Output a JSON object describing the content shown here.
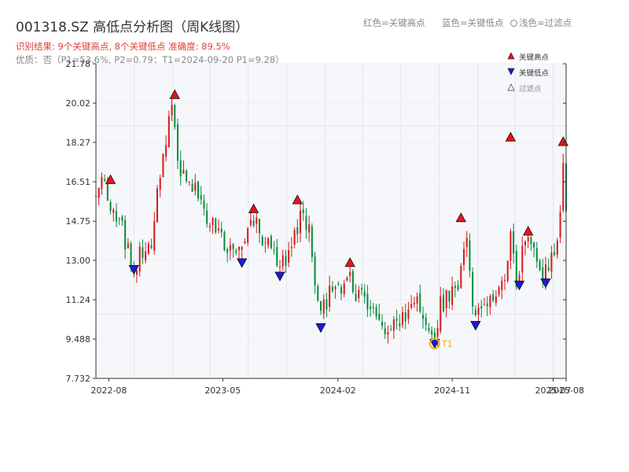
{
  "header": {
    "title": "001318.SZ 高低点分析图（周K线图）",
    "legend_text": {
      "red": "红色=关键高点",
      "blue": "蓝色=关键低点",
      "filtered": "浅色=过滤点"
    },
    "result": "识别结果: 9个关键高点, 8个关键低点  准确度: 89.5%",
    "quality": "优质：否（P1=53.6%, P2=0.79；T1=2024-09-20 P1=9.28）"
  },
  "colors": {
    "up": "#d7191c",
    "down": "#0a8a3a",
    "high_marker": "#e8141c",
    "low_marker": "#1a1ad8",
    "t1": "#f5a623",
    "plot_bg": "#f5f7fa",
    "grid": "#e2e6ea"
  },
  "chart_data": {
    "type": "candlestick",
    "title": "001318.SZ 高低点分析图（周K线图）",
    "x_range": [
      "2022-07-01",
      "2025-08-01"
    ],
    "y_range": [
      7.732,
      21.78
    ],
    "y_ticks": [
      {
        "value": 7.732,
        "label": "7.732"
      },
      {
        "value": 9.488,
        "label": "9.488"
      },
      {
        "value": 11.244,
        "label": "11.24"
      },
      {
        "value": 13.0,
        "label": "13.00"
      },
      {
        "value": 14.75,
        "label": "14.75"
      },
      {
        "value": 16.51,
        "label": "16.51"
      },
      {
        "value": 18.27,
        "label": "18.27"
      },
      {
        "value": 20.02,
        "label": "20.02"
      },
      {
        "value": 21.78,
        "label": "21.78"
      }
    ],
    "x_ticks": [
      {
        "date": "2022-08-01",
        "label": "2022-08"
      },
      {
        "date": "2023-05-01",
        "label": "2023-05"
      },
      {
        "date": "2024-02-01",
        "label": "2024-02"
      },
      {
        "date": "2024-11-01",
        "label": "2024-11"
      },
      {
        "date": "2025-07-01",
        "label": "2025-07"
      },
      {
        "date": "2025-08-01",
        "label": "2025-08"
      }
    ],
    "price_path": [
      [
        "2022-07-01",
        16.0
      ],
      [
        "2022-07-22",
        16.5
      ],
      [
        "2022-08-05",
        15.5
      ],
      [
        "2022-08-26",
        14.8
      ],
      [
        "2022-09-16",
        13.5
      ],
      [
        "2022-09-30",
        12.6
      ],
      [
        "2022-10-21",
        13.5
      ],
      [
        "2022-11-11",
        14.0
      ],
      [
        "2022-12-02",
        17.0
      ],
      [
        "2022-12-16",
        18.5
      ],
      [
        "2022-12-30",
        20.0
      ],
      [
        "2023-01-13",
        17.0
      ],
      [
        "2023-02-03",
        16.5
      ],
      [
        "2023-02-24",
        16.5
      ],
      [
        "2023-03-17",
        15.0
      ],
      [
        "2023-04-07",
        14.5
      ],
      [
        "2023-04-28",
        14.0
      ],
      [
        "2023-05-19",
        13.5
      ],
      [
        "2023-06-09",
        13.2
      ],
      [
        "2023-06-23",
        14.0
      ],
      [
        "2023-07-14",
        14.8
      ],
      [
        "2023-08-04",
        14.0
      ],
      [
        "2023-08-25",
        13.5
      ],
      [
        "2023-09-15",
        12.6
      ],
      [
        "2023-10-06",
        13.2
      ],
      [
        "2023-10-27",
        14.5
      ],
      [
        "2023-11-10",
        15.2
      ],
      [
        "2023-11-24",
        14.2
      ],
      [
        "2023-12-08",
        12.0
      ],
      [
        "2023-12-22",
        10.5
      ],
      [
        "2024-01-12",
        11.5
      ],
      [
        "2024-02-02",
        11.5
      ],
      [
        "2024-02-23",
        12.5
      ],
      [
        "2024-03-15",
        11.5
      ],
      [
        "2024-04-05",
        11.5
      ],
      [
        "2024-04-26",
        10.5
      ],
      [
        "2024-05-17",
        10.2
      ],
      [
        "2024-06-07",
        10.0
      ],
      [
        "2024-06-28",
        10.3
      ],
      [
        "2024-07-19",
        10.8
      ],
      [
        "2024-08-09",
        11.0
      ],
      [
        "2024-08-30",
        10.2
      ],
      [
        "2024-09-20",
        9.5
      ],
      [
        "2024-10-04",
        11.0
      ],
      [
        "2024-10-25",
        11.5
      ],
      [
        "2024-11-15",
        12.0
      ],
      [
        "2024-12-06",
        14.0
      ],
      [
        "2024-12-20",
        11.0
      ],
      [
        "2025-01-03",
        10.5
      ],
      [
        "2025-01-24",
        11.2
      ],
      [
        "2025-02-14",
        11.5
      ],
      [
        "2025-03-07",
        12.0
      ],
      [
        "2025-03-21",
        14.5
      ],
      [
        "2025-04-04",
        12.0
      ],
      [
        "2025-04-18",
        13.5
      ],
      [
        "2025-05-09",
        14.0
      ],
      [
        "2025-05-23",
        13.0
      ],
      [
        "2025-06-06",
        12.5
      ],
      [
        "2025-06-20",
        13.0
      ],
      [
        "2025-07-11",
        13.5
      ],
      [
        "2025-07-25",
        17.0
      ],
      [
        "2025-08-01",
        15.0
      ]
    ],
    "key_highs": [
      {
        "date": "2022-08-05",
        "value": 16.6
      },
      {
        "date": "2023-01-06",
        "value": 20.4
      },
      {
        "date": "2023-07-14",
        "value": 15.3
      },
      {
        "date": "2023-10-27",
        "value": 15.7
      },
      {
        "date": "2024-03-01",
        "value": 12.9
      },
      {
        "date": "2024-11-22",
        "value": 14.9
      },
      {
        "date": "2025-03-21",
        "value": 18.5
      },
      {
        "date": "2025-05-02",
        "value": 14.3
      },
      {
        "date": "2025-07-25",
        "value": 18.3
      }
    ],
    "key_lows": [
      {
        "date": "2022-09-30",
        "value": 12.6
      },
      {
        "date": "2023-06-16",
        "value": 12.9
      },
      {
        "date": "2023-09-15",
        "value": 12.3
      },
      {
        "date": "2023-12-22",
        "value": 10.0
      },
      {
        "date": "2024-09-20",
        "value": 9.3
      },
      {
        "date": "2024-12-27",
        "value": 10.1
      },
      {
        "date": "2025-04-11",
        "value": 11.9
      },
      {
        "date": "2025-06-13",
        "value": 12.0
      }
    ],
    "t1_point": {
      "date": "2024-09-20",
      "value": 9.28,
      "label": "T1"
    },
    "legend": {
      "position": "top-right",
      "items": [
        "关键高点",
        "关键低点",
        "过滤点"
      ]
    },
    "grid": true
  }
}
